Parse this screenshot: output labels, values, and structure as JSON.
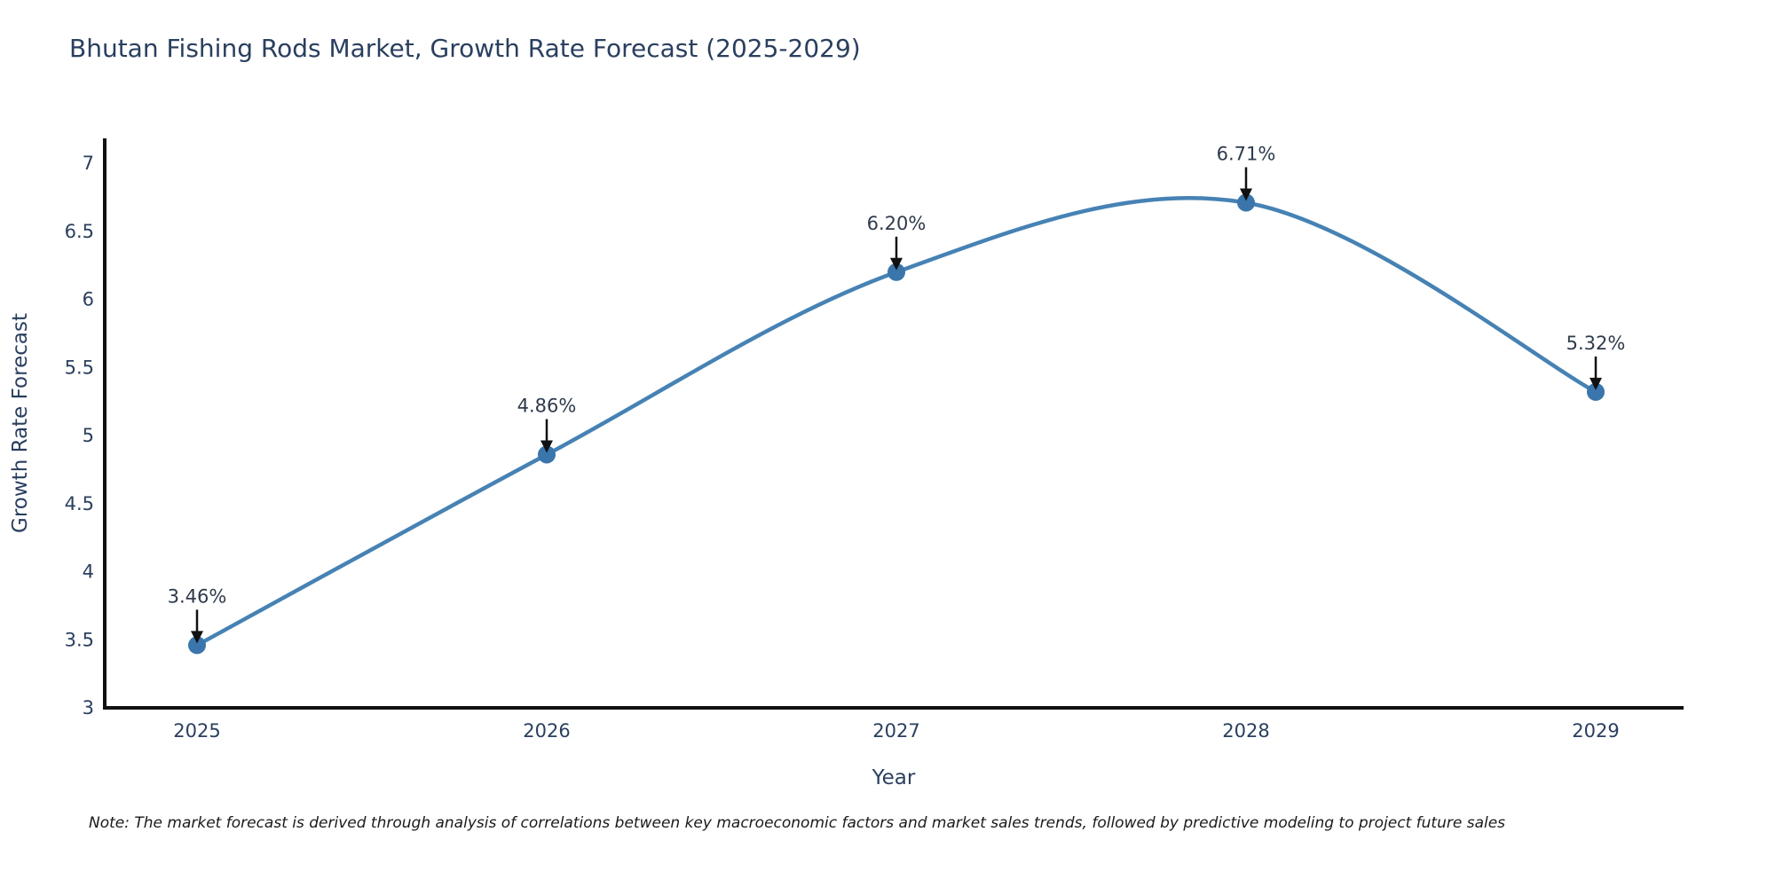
{
  "title": "Bhutan Fishing Rods Market, Growth Rate Forecast (2025-2029)",
  "note": "Note: The market forecast is derived through analysis of correlations between key macroeconomic factors and market sales trends, followed by predictive modeling to project future sales",
  "chart_data": {
    "type": "line",
    "line_shape": "spline",
    "x": [
      2025,
      2026,
      2027,
      2028,
      2029
    ],
    "values": [
      3.46,
      4.86,
      6.2,
      6.71,
      5.32
    ],
    "point_labels": [
      "3.46%",
      "4.86%",
      "6.20%",
      "6.71%",
      "5.32%"
    ],
    "title": "Bhutan Fishing Rods Market, Growth Rate Forecast (2025-2029)",
    "xlabel": "Year",
    "ylabel": "Growth Rate Forecast",
    "ylim": [
      3,
      7
    ],
    "yticks": [
      "3",
      "3.5",
      "4",
      "4.5",
      "5",
      "5.5",
      "6",
      "6.5",
      "7"
    ],
    "ytick_values": [
      3,
      3.5,
      4,
      4.5,
      5,
      5.5,
      6,
      6.5,
      7
    ],
    "grid": false,
    "legend": "none",
    "annotations_arrow": true,
    "colors": {
      "line": "#4682B4",
      "marker": "#3a76ab",
      "axis": "#111111",
      "text": "#2a3f5f",
      "annotation_text": "#2f3b4c",
      "arrow": "#111111",
      "background": "#ffffff"
    }
  }
}
